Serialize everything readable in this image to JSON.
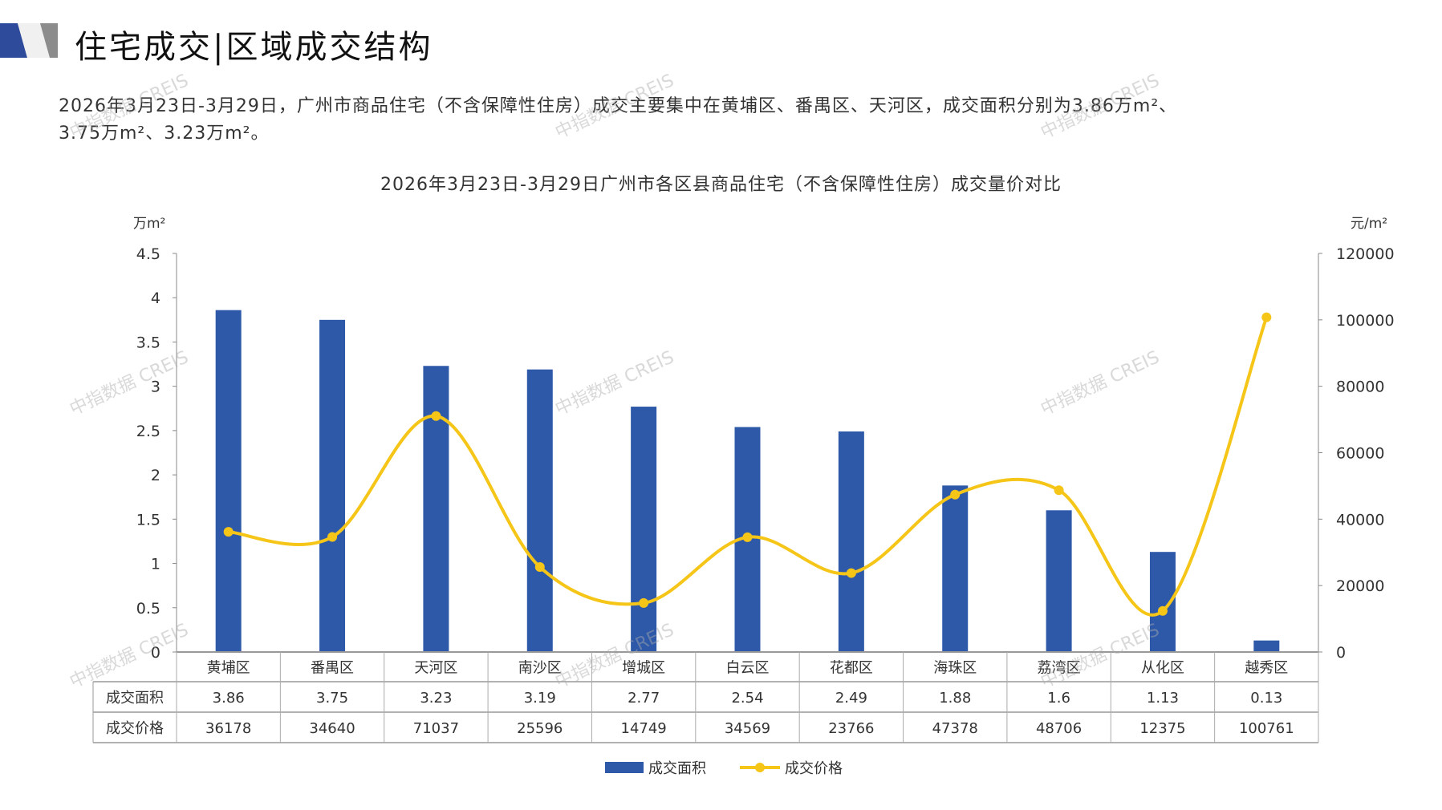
{
  "header": {
    "title": "住宅成交|区域成交结构"
  },
  "summary": {
    "text_line1": "2026年3月23日-3月29日，广州市商品住宅（不含保障性住房）成交主要集中在黄埔区、番禺区、天河区，成交面积分别为3.86万m²、",
    "text_line2": "3.75万m²、3.23万m²。"
  },
  "watermark": "中指数据 CREIS",
  "colors": {
    "bar": "#2E59A8",
    "line": "#F5C518",
    "grid": "#999999"
  },
  "chart_data": {
    "type": "bar",
    "title": "2026年3月23日-3月29日广州市各区县商品住宅（不含保障性住房）成交量价对比",
    "categories": [
      "黄埔区",
      "番禺区",
      "天河区",
      "南沙区",
      "增城区",
      "白云区",
      "花都区",
      "海珠区",
      "荔湾区",
      "从化区",
      "越秀区"
    ],
    "series": [
      {
        "name": "成交面积",
        "type": "bar",
        "axis": "left",
        "values": [
          3.86,
          3.75,
          3.23,
          3.19,
          2.77,
          2.54,
          2.49,
          1.88,
          1.6,
          1.13,
          0.13
        ]
      },
      {
        "name": "成交价格",
        "type": "line",
        "axis": "right",
        "values": [
          36178,
          34640,
          71037,
          25596,
          14749,
          34569,
          23766,
          47378,
          48706,
          12375,
          100761
        ]
      }
    ],
    "ylabel_left": "万m²",
    "ylabel_right": "元/m²",
    "ylim_left": [
      0,
      4.5
    ],
    "ylim_right": [
      0,
      120000
    ],
    "yticks_left": [
      "0",
      "0.5",
      "1",
      "1.5",
      "2",
      "2.5",
      "3",
      "3.5",
      "4",
      "4.5"
    ],
    "yticks_right": [
      "0",
      "20000",
      "40000",
      "60000",
      "80000",
      "100000",
      "120000"
    ],
    "table": {
      "row_labels": [
        "成交面积",
        "成交价格"
      ],
      "area_values": [
        "3.86",
        "3.75",
        "3.23",
        "3.19",
        "2.77",
        "2.54",
        "2.49",
        "1.88",
        "1.6",
        "1.13",
        "0.13"
      ],
      "price_values": [
        "36178",
        "34640",
        "71037",
        "25596",
        "14749",
        "34569",
        "23766",
        "47378",
        "48706",
        "12375",
        "100761"
      ]
    },
    "legend": {
      "position": "bottom",
      "items": [
        "成交面积",
        "成交价格"
      ]
    }
  }
}
